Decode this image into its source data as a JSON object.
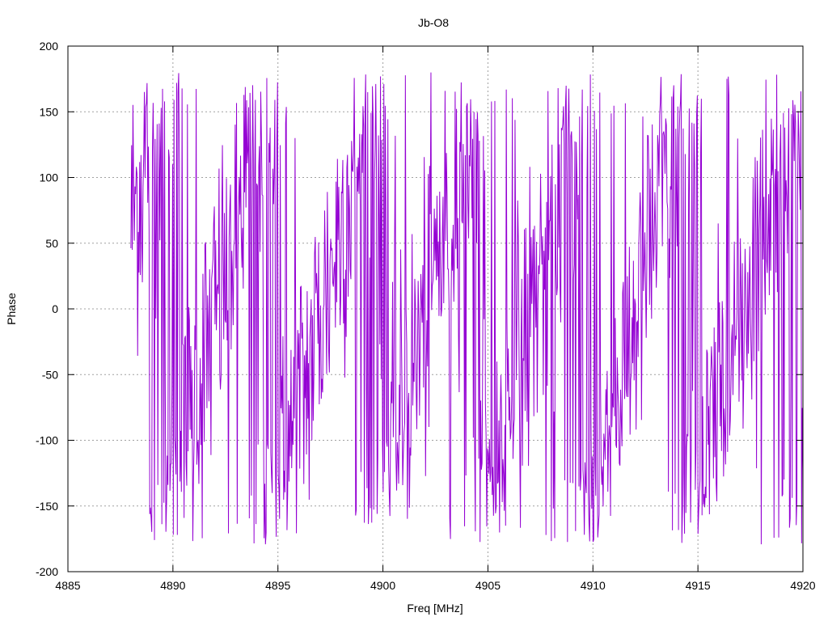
{
  "chart_data": {
    "type": "line",
    "title": "Jb-O8",
    "xlabel": "Freq [MHz]",
    "ylabel": "Phase",
    "xlim": [
      4885,
      4920
    ],
    "ylim": [
      -200,
      200
    ],
    "x_ticks": [
      4885,
      4890,
      4895,
      4900,
      4905,
      4910,
      4915,
      4920
    ],
    "y_ticks": [
      -200,
      -150,
      -100,
      -50,
      0,
      50,
      100,
      150,
      200
    ],
    "grid": true,
    "legend": "none",
    "series": [
      {
        "color": "#9400d3",
        "x_start": 4888.0,
        "x_end": 4920.0,
        "samples": 1000,
        "phase_wrap_period_mhz": 5.0,
        "phase_center_mhz": 4889.6,
        "noise_deg": 60
      }
    ]
  }
}
